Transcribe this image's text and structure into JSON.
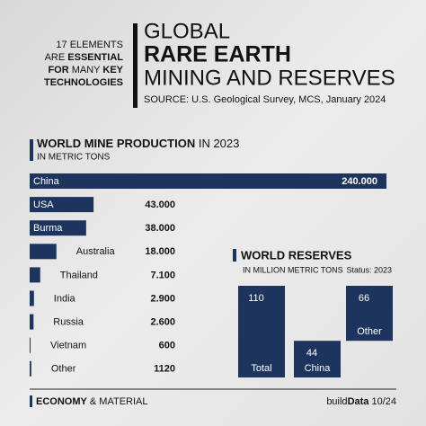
{
  "header": {
    "intro": [
      [
        {
          "text": "17 ELEMENTS",
          "bold": false
        }
      ],
      [
        {
          "text": "ARE ",
          "bold": false
        },
        {
          "text": "ESSENTIAL",
          "bold": true
        }
      ],
      [
        {
          "text": "FOR ",
          "bold": true
        },
        {
          "text": "MANY ",
          "bold": false
        },
        {
          "text": "KEY",
          "bold": true
        }
      ],
      [
        {
          "text": "TECHNOLOGIES",
          "bold": true
        }
      ]
    ],
    "title_lines": [
      "GLOBAL",
      "RARE EARTH",
      "MINING AND RESERVES"
    ],
    "source": "SOURCE: U.S. Geological Survey, MCS, January 2024"
  },
  "chart_data": [
    {
      "type": "hbar",
      "title": [
        {
          "text": "WORLD MINE PRODUCTION",
          "bold": true
        },
        {
          "text": " IN 2023",
          "bold": false
        }
      ],
      "subtitle": "IN METRIC TONS",
      "color": "#1d355e",
      "categories": [
        "China",
        "USA",
        "Burma",
        "Australia",
        "Thailand",
        "India",
        "Russia",
        "Vietnam",
        "Other"
      ],
      "values": [
        240000,
        43000,
        38000,
        18000,
        7100,
        2900,
        2600,
        600,
        1120
      ],
      "value_labels": [
        "240.000",
        "43.000",
        "38.000",
        "18.000",
        "7.100",
        "2.900",
        "2.600",
        "600",
        "1120"
      ]
    },
    {
      "type": "waterfall",
      "title": "WORLD RESERVES",
      "subtitle": "IN MILLION METRIC TONS",
      "note": "Status: 2023",
      "color": "#1d355e",
      "categories": [
        "Total",
        "China",
        "Other"
      ],
      "values": [
        110,
        44,
        66
      ]
    }
  ],
  "footer": {
    "left": [
      {
        "text": "ECONOMY",
        "bold": true
      },
      {
        "text": " & MATERIAL",
        "bold": false
      }
    ],
    "right": [
      {
        "text": "build",
        "bold": false
      },
      {
        "text": "Data",
        "bold": true
      },
      {
        "text": " 10/24",
        "bold": false
      }
    ]
  }
}
